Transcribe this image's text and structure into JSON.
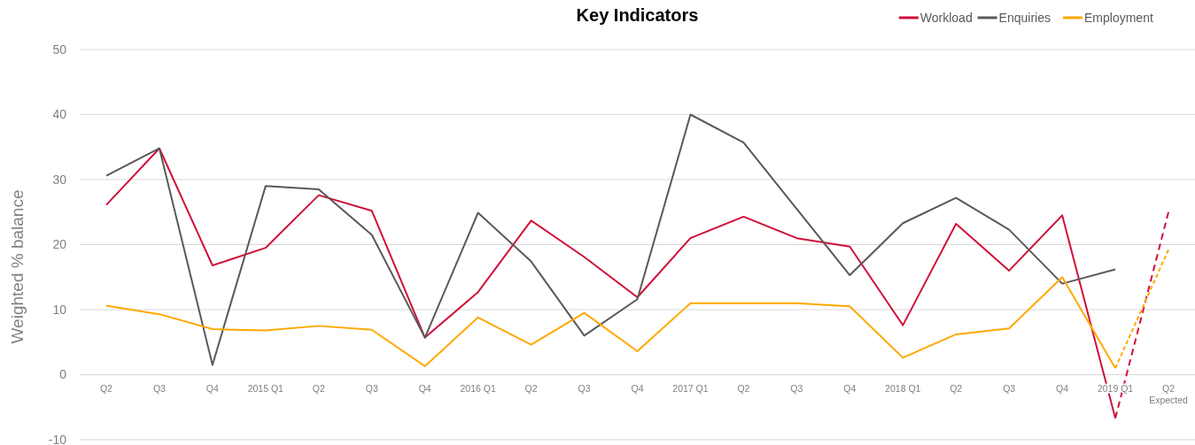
{
  "chart_data": {
    "type": "line",
    "title": "Key Indicators",
    "ylabel": "Weighted % balance",
    "categories": [
      "Q2",
      "Q3",
      "Q4",
      "2015 Q1",
      "Q2",
      "Q3",
      "Q4",
      "2016 Q1",
      "Q2",
      "Q3",
      "Q4",
      "2017 Q1",
      "Q2",
      "Q3",
      "Q4",
      "2018 Q1",
      "Q2",
      "Q3",
      "Q4",
      "2019 Q1",
      "Q2\nExpected"
    ],
    "series": [
      {
        "name": "Workload",
        "color": "#d0103a",
        "values": [
          26.1,
          34.8,
          16.8,
          19.5,
          27.6,
          25.2,
          5.7,
          12.7,
          23.7,
          18.1,
          11.9,
          21,
          24.3,
          21,
          19.7,
          7.6,
          23.2,
          16,
          24.5,
          -6.7,
          null
        ]
      },
      {
        "name": "Enquiries",
        "color": "#595959",
        "values": [
          30.6,
          34.8,
          1.5,
          29,
          28.5,
          21.5,
          5.7,
          24.9,
          17.4,
          6,
          11.6,
          40,
          35.7,
          25.5,
          15.3,
          23.3,
          27.2,
          22.3,
          14,
          16.2,
          null
        ]
      },
      {
        "name": "Employment",
        "color": "#ffa800",
        "values": [
          10.6,
          9.3,
          7,
          6.8,
          7.5,
          6.9,
          1.3,
          8.8,
          4.6,
          9.5,
          3.6,
          11,
          11,
          11,
          10.5,
          2.6,
          6.2,
          7.1,
          15,
          1,
          null
        ]
      },
      {
        "color": "#d0103a",
        "line_style": "dashed",
        "values": [
          null,
          null,
          null,
          null,
          null,
          null,
          null,
          null,
          null,
          null,
          null,
          null,
          null,
          null,
          null,
          null,
          null,
          null,
          null,
          -6.7,
          25
        ]
      },
      {
        "color": "#ffa800",
        "line_style": "dashed",
        "values": [
          null,
          null,
          null,
          null,
          null,
          null,
          null,
          null,
          null,
          null,
          null,
          null,
          null,
          null,
          null,
          null,
          null,
          null,
          null,
          1,
          19.2
        ]
      }
    ],
    "ylim": [
      -10,
      50
    ],
    "yticks": [
      -10,
      0,
      10,
      20,
      30,
      40,
      50
    ],
    "grid": "y",
    "legend": "top right"
  }
}
